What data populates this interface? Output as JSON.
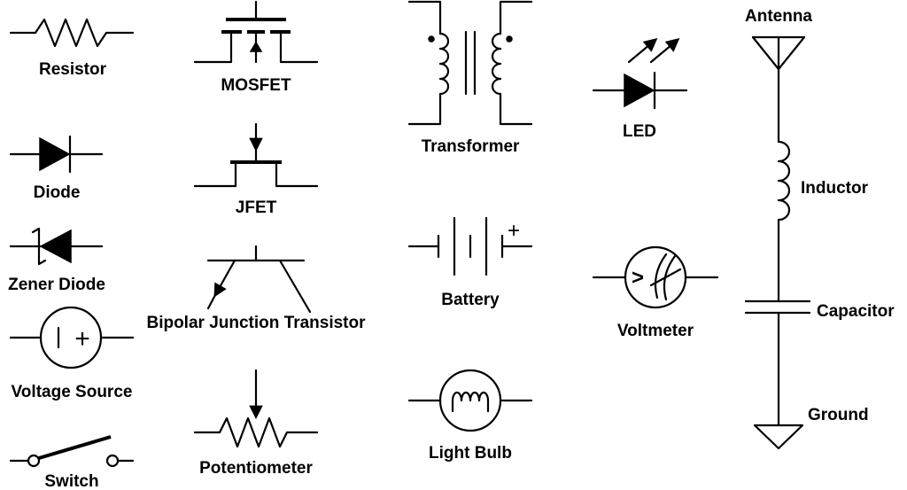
{
  "labels": {
    "resistor": "Resistor",
    "diode": "Diode",
    "zener_diode": "Zener Diode",
    "voltage_source": "Voltage Source",
    "switch": "Switch",
    "mosfet": "MOSFET",
    "jfet": "JFET",
    "bjt": "Bipolar Junction Transistor",
    "potentiometer": "Potentiometer",
    "transformer": "Transformer",
    "battery": "Battery",
    "light_bulb": "Light Bulb",
    "led": "LED",
    "voltmeter": "Voltmeter",
    "antenna": "Antenna",
    "inductor": "Inductor",
    "capacitor": "Capacitor",
    "ground": "Ground"
  },
  "battery_plus_sign": "+",
  "voltage_source_sign": "+",
  "voltmeter_sign": ">"
}
